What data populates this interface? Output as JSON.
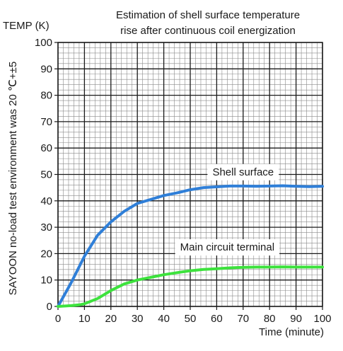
{
  "chart_data": {
    "type": "line",
    "title_lines": [
      "Estimation of shell surface temperature",
      "rise after continuous coil energization"
    ],
    "ylabel": "TEMP (K)",
    "xlabel": "Time (minute)",
    "side_note": "SAYOON no-load test environment was 20 ℃+±5",
    "xlim": [
      0,
      100
    ],
    "ylim": [
      0,
      100
    ],
    "x_ticks": [
      0,
      10,
      20,
      30,
      40,
      50,
      60,
      70,
      80,
      90,
      100
    ],
    "y_ticks": [
      0,
      10,
      20,
      30,
      40,
      50,
      60,
      70,
      80,
      90,
      100
    ],
    "grid": true,
    "series": [
      {
        "name": "Shell surface",
        "color": "#2f7fd8",
        "x": [
          0,
          5,
          10,
          15,
          20,
          25,
          30,
          35,
          40,
          45,
          50,
          55,
          60,
          65,
          70,
          75,
          80,
          85,
          90,
          95,
          100
        ],
        "y": [
          0,
          9,
          19,
          27,
          32,
          36,
          39,
          40.5,
          42,
          43,
          44.2,
          45,
          45.3,
          45.6,
          45.6,
          45.5,
          45.6,
          45.7,
          45.5,
          45.4,
          45.5
        ]
      },
      {
        "name": "Main circuit terminal",
        "color": "#3de23d",
        "x": [
          0,
          5,
          8,
          10,
          15,
          20,
          25,
          30,
          35,
          40,
          45,
          50,
          55,
          60,
          65,
          70,
          75,
          80,
          85,
          90,
          95,
          100
        ],
        "y": [
          0,
          0.3,
          0.6,
          1,
          3,
          6,
          8.5,
          10,
          11,
          12,
          12.8,
          13.5,
          14,
          14.3,
          14.6,
          14.8,
          14.9,
          14.9,
          15,
          14.9,
          14.9,
          14.9
        ]
      }
    ]
  }
}
